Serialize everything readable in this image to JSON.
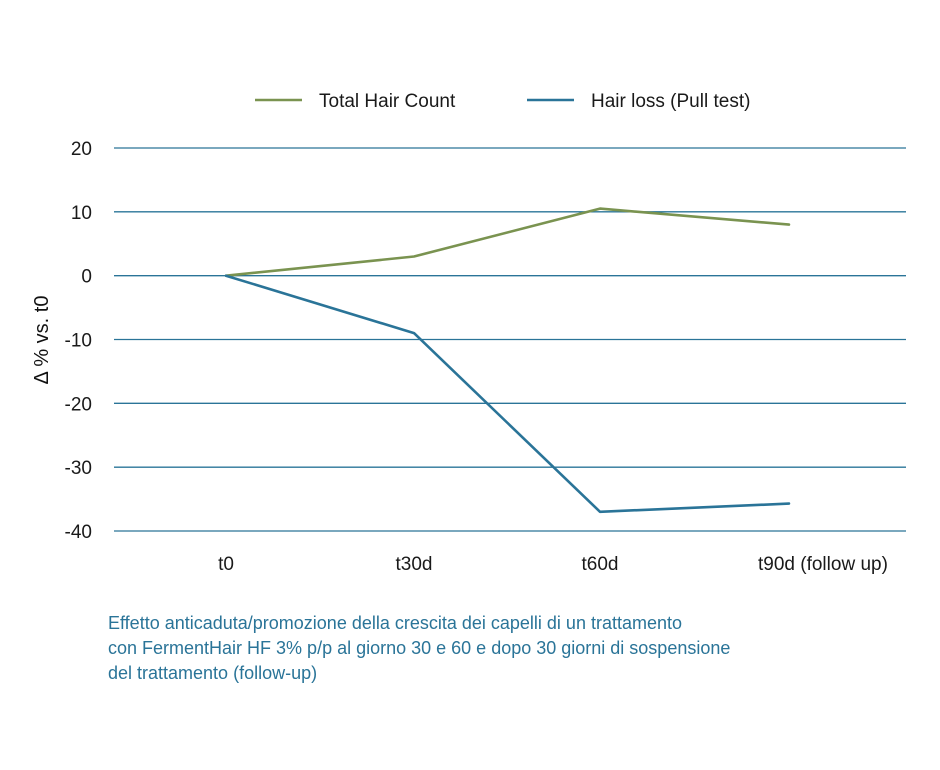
{
  "chart_data": {
    "type": "line",
    "categories": [
      "t0",
      "t30d",
      "t60d",
      "t90d (follow up)"
    ],
    "ylabel": "Δ % vs. t0",
    "ylim": [
      -40,
      20
    ],
    "yticks": [
      20,
      10,
      0,
      -10,
      -20,
      -30,
      -40
    ],
    "grid": true,
    "legend_position": "top-center",
    "series": [
      {
        "name": "Total Hair Count",
        "color": "#7a9350",
        "values": [
          0,
          3,
          10.5,
          8
        ]
      },
      {
        "name": "Hair loss (Pull test)",
        "color": "#2a7498",
        "values": [
          0,
          -9,
          -37,
          -35.7
        ]
      }
    ]
  },
  "caption": {
    "lines": [
      "Effetto anticaduta/promozione della crescita dei capelli di un trattamento",
      "con FermentHair HF 3% p/p al giorno 30 e 60 e dopo 30 giorni di sospensione",
      "del trattamento (follow-up)"
    ]
  },
  "colors": {
    "grid": "#2a7498",
    "caption": "#2a7498"
  }
}
